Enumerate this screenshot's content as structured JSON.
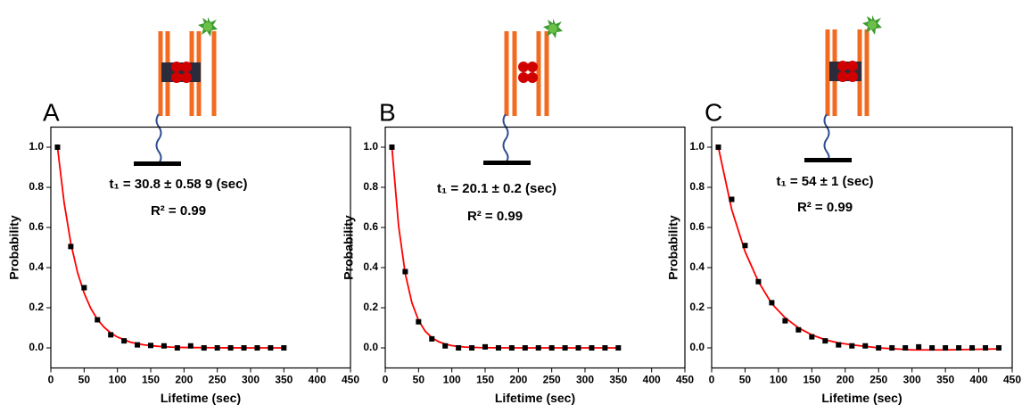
{
  "chart_data": [
    {
      "type": "scatter",
      "panel": "A",
      "y_label": "Probability",
      "x_label": "Lifetime (sec)",
      "annotations": [
        "t₁ = 30.8 ± 0.58 9 (sec)",
        "R² = 0.99"
      ],
      "color": "#000000",
      "x": [
        10,
        30,
        50,
        70,
        90,
        110,
        130,
        150,
        170,
        190,
        210,
        230,
        250,
        270,
        290,
        310,
        330,
        350
      ],
      "values": [
        1.0,
        0.505,
        0.3,
        0.14,
        0.065,
        0.035,
        0.015,
        0.012,
        0.01,
        0.0,
        0.01,
        0.0,
        0.0,
        0.0,
        0.0,
        0.0,
        0.0,
        0.0
      ],
      "fit": {
        "color": "#ff0000",
        "x": [
          10,
          20,
          30,
          40,
          50,
          60,
          70,
          80,
          90,
          100,
          120,
          140,
          160,
          180,
          200,
          250,
          300,
          350
        ],
        "values": [
          1.0,
          0.723,
          0.522,
          0.377,
          0.273,
          0.197,
          0.142,
          0.103,
          0.074,
          0.054,
          0.028,
          0.015,
          0.008,
          0.004,
          0.002,
          0.0004,
          0.0,
          0.0
        ]
      },
      "xlim": [
        0,
        450
      ],
      "xticks": [
        0,
        50,
        100,
        150,
        200,
        250,
        300,
        350,
        400,
        450
      ],
      "ylim": [
        -0.1,
        1.1
      ],
      "yticks": [
        {
          "value": 0,
          "label": "0.0"
        },
        0.2,
        0.4,
        0.6,
        0.8,
        {
          "value": 1,
          "label": "1.0"
        }
      ]
    },
    {
      "type": "scatter",
      "panel": "B",
      "y_label": "Probability",
      "x_label": "Lifetime (sec)",
      "annotations": [
        "t₁ = 20.1 ± 0.2 (sec)",
        "R² = 0.99"
      ],
      "color": "#000000",
      "x": [
        10,
        30,
        50,
        70,
        90,
        110,
        130,
        150,
        170,
        190,
        210,
        230,
        250,
        270,
        290,
        310,
        330,
        350
      ],
      "values": [
        1.0,
        0.38,
        0.13,
        0.045,
        0.01,
        0.0,
        0.0,
        0.005,
        0.0,
        0.0,
        0.0,
        0.0,
        0.0,
        0.0,
        0.0,
        0.0,
        0.0,
        0.0
      ],
      "fit": {
        "color": "#ff0000",
        "x": [
          10,
          20,
          30,
          40,
          50,
          60,
          70,
          80,
          90,
          100,
          120,
          140,
          160,
          200,
          250,
          300,
          350
        ],
        "values": [
          1.0,
          0.608,
          0.37,
          0.225,
          0.137,
          0.083,
          0.051,
          0.031,
          0.019,
          0.011,
          0.004,
          0.0015,
          0.0006,
          0.0,
          0.0,
          0.0,
          0.0
        ]
      },
      "xlim": [
        0,
        450
      ],
      "xticks": [
        0,
        50,
        100,
        150,
        200,
        250,
        300,
        350,
        400,
        450
      ],
      "ylim": [
        -0.1,
        1.1
      ],
      "yticks": [
        {
          "value": 0,
          "label": "0.0"
        },
        0.2,
        0.4,
        0.6,
        0.8,
        {
          "value": 1,
          "label": "1.0"
        }
      ]
    },
    {
      "type": "scatter",
      "panel": "C",
      "y_label": "Probability",
      "x_label": "Lifetime (sec)",
      "annotations": [
        "t₁ = 54 ± 1 (sec)",
        "R² = 0.99"
      ],
      "color": "#000000",
      "x": [
        10,
        30,
        50,
        70,
        90,
        110,
        130,
        150,
        170,
        190,
        210,
        230,
        250,
        270,
        290,
        310,
        330,
        350,
        370,
        390,
        410,
        430
      ],
      "values": [
        1.0,
        0.74,
        0.51,
        0.33,
        0.225,
        0.135,
        0.09,
        0.055,
        0.035,
        0.015,
        0.01,
        0.01,
        0.0,
        0.0,
        0.0,
        0.005,
        0.0,
        0.0,
        0.0,
        0.0,
        0.0,
        0.0
      ],
      "fit": {
        "color": "#ff0000",
        "x": [
          10,
          30,
          50,
          70,
          90,
          110,
          130,
          150,
          170,
          190,
          210,
          250,
          300,
          350,
          430
        ],
        "values": [
          1.0,
          0.69,
          0.48,
          0.33,
          0.22,
          0.15,
          0.1,
          0.065,
          0.04,
          0.025,
          0.015,
          0.0,
          -0.01,
          -0.01,
          -0.005
        ]
      },
      "xlim": [
        0,
        450
      ],
      "xticks": [
        0,
        50,
        100,
        150,
        200,
        250,
        300,
        350,
        400,
        450
      ],
      "ylim": [
        -0.1,
        1.1
      ],
      "yticks": [
        {
          "value": 0,
          "label": "0.0"
        },
        0.2,
        0.4,
        0.6,
        0.8,
        {
          "value": 1,
          "label": "1.0"
        }
      ]
    }
  ]
}
